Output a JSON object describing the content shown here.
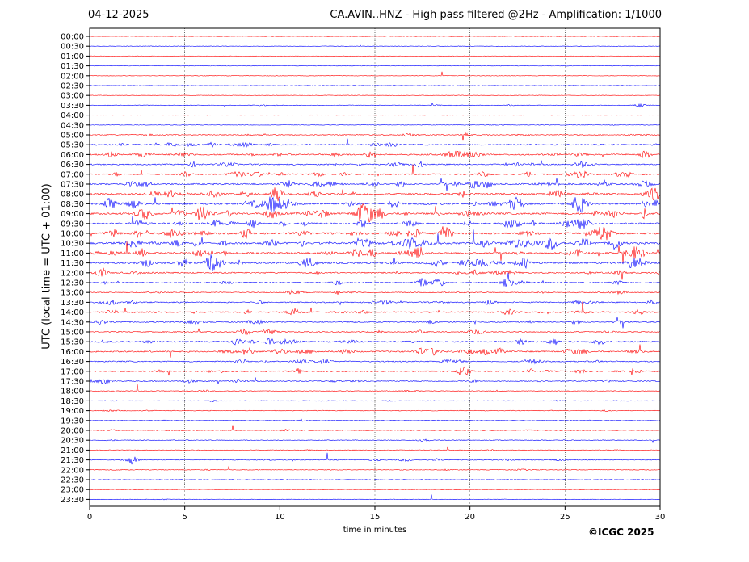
{
  "header": {
    "date": "04-12-2025",
    "title": "CA.AVIN..HNZ - High pass filtered @2Hz - Amplification: 1/1000"
  },
  "footer": {
    "copyright": "©ICGC 2025"
  },
  "chart_data": {
    "type": "line",
    "ylabel": "UTC (local time = UTC + 01:00)",
    "xlabel": "time in minutes",
    "xlim": [
      0,
      30
    ],
    "x_ticks": [
      0,
      5,
      10,
      15,
      20,
      25,
      30
    ],
    "grid": "vertical dotted lines at 5, 10, 15, 20, 25",
    "trace_colors": [
      "#ff0000",
      "#0000ff"
    ],
    "rows": [
      "00:00",
      "00:30",
      "01:00",
      "01:30",
      "02:00",
      "02:30",
      "03:00",
      "03:30",
      "04:00",
      "04:30",
      "05:00",
      "05:30",
      "06:00",
      "06:30",
      "07:00",
      "07:30",
      "08:00",
      "08:30",
      "09:00",
      "09:30",
      "10:00",
      "10:30",
      "11:00",
      "11:30",
      "12:00",
      "12:30",
      "13:00",
      "13:30",
      "14:00",
      "14:30",
      "15:00",
      "15:30",
      "16:00",
      "16:30",
      "17:00",
      "17:30",
      "18:00",
      "18:30",
      "19:00",
      "19:30",
      "20:00",
      "20:30",
      "21:00",
      "21:30",
      "22:00",
      "22:30",
      "23:00",
      "23:30"
    ],
    "activity": [
      0.05,
      0.06,
      0.05,
      0.06,
      0.05,
      0.05,
      0.05,
      0.12,
      0.06,
      0.08,
      0.35,
      0.5,
      0.65,
      0.5,
      0.55,
      0.7,
      0.8,
      0.85,
      0.95,
      0.75,
      0.9,
      1.0,
      0.9,
      0.85,
      0.6,
      0.45,
      0.35,
      0.45,
      0.55,
      0.45,
      0.4,
      0.6,
      0.65,
      0.45,
      0.5,
      0.4,
      0.2,
      0.2,
      0.18,
      0.2,
      0.18,
      0.2,
      0.18,
      0.25,
      0.18,
      0.1,
      0.08,
      0.06
    ],
    "events": [
      {
        "row": "03:30",
        "minute": 29.0,
        "size": 0.3
      },
      {
        "row": "05:30",
        "minute": 4.3,
        "size": 0.4
      },
      {
        "row": "06:00",
        "minute": 29.2,
        "size": 0.6
      },
      {
        "row": "06:30",
        "minute": 25.8,
        "size": 0.5
      },
      {
        "row": "07:00",
        "minute": 5.1,
        "size": 0.4
      },
      {
        "row": "07:00",
        "minute": 20.7,
        "size": 0.4
      },
      {
        "row": "07:30",
        "minute": 10.4,
        "size": 0.7
      },
      {
        "row": "07:30",
        "minute": 20.2,
        "size": 0.6
      },
      {
        "row": "08:00",
        "minute": 6.5,
        "size": 0.6
      },
      {
        "row": "08:00",
        "minute": 29.6,
        "size": 0.8
      },
      {
        "row": "08:30",
        "minute": 1.1,
        "size": 0.7
      },
      {
        "row": "08:30",
        "minute": 16.0,
        "size": 0.6
      },
      {
        "row": "09:00",
        "minute": 5.9,
        "size": 1.2
      },
      {
        "row": "09:00",
        "minute": 3.0,
        "size": 0.6
      },
      {
        "row": "09:30",
        "minute": 25.9,
        "size": 0.9
      },
      {
        "row": "10:00",
        "minute": 18.8,
        "size": 1.0
      },
      {
        "row": "10:30",
        "minute": 4.6,
        "size": 0.6
      },
      {
        "row": "10:30",
        "minute": 20.8,
        "size": 0.6
      },
      {
        "row": "11:00",
        "minute": 28.7,
        "size": 0.7
      },
      {
        "row": "11:30",
        "minute": 6.5,
        "size": 0.8
      },
      {
        "row": "11:30",
        "minute": 21.0,
        "size": 0.5
      },
      {
        "row": "12:00",
        "minute": 0.6,
        "size": 0.7
      },
      {
        "row": "12:00",
        "minute": 20.3,
        "size": 0.4
      },
      {
        "row": "12:30",
        "minute": 17.5,
        "size": 0.9
      },
      {
        "row": "12:30",
        "minute": 18.3,
        "size": 0.6
      },
      {
        "row": "12:30",
        "minute": 13.0,
        "size": 0.4
      },
      {
        "row": "12:30",
        "minute": 22.0,
        "size": 0.4
      },
      {
        "row": "13:30",
        "minute": 1.2,
        "size": 0.4
      },
      {
        "row": "14:00",
        "minute": 1.2,
        "size": 0.4
      },
      {
        "row": "14:00",
        "minute": 28.9,
        "size": 0.5
      },
      {
        "row": "15:30",
        "minute": 22.7,
        "size": 0.5
      },
      {
        "row": "15:30",
        "minute": 26.8,
        "size": 0.6
      },
      {
        "row": "16:00",
        "minute": 8.3,
        "size": 0.7
      },
      {
        "row": "16:00",
        "minute": 13.5,
        "size": 0.5
      },
      {
        "row": "16:00",
        "minute": 18.1,
        "size": 0.6
      },
      {
        "row": "16:00",
        "minute": 25.8,
        "size": 0.5
      },
      {
        "row": "17:00",
        "minute": 28.6,
        "size": 0.7
      },
      {
        "row": "17:30",
        "minute": 0.8,
        "size": 0.4
      },
      {
        "row": "21:30",
        "minute": 2.2,
        "size": 0.8
      }
    ]
  }
}
